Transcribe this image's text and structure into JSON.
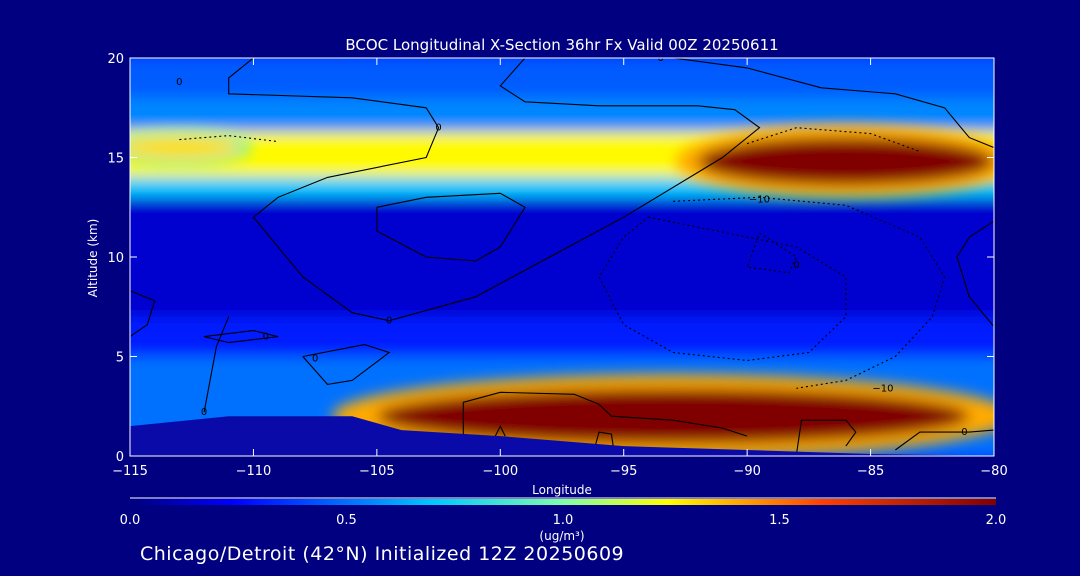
{
  "chart_data": {
    "type": "heatmap",
    "title": "BCOC Longitudinal X-Section 36hr  Fx Valid 00Z 20250611",
    "subtitle": "Chicago/Detroit (42°N) Initialized 12Z 20250609",
    "xlabel": "Longitude",
    "ylabel": "Altitude (km)",
    "xlim": [
      -115,
      -80
    ],
    "ylim": [
      0,
      20
    ],
    "x_ticks": [
      {
        "value": -115,
        "label": "−115"
      },
      {
        "value": -110,
        "label": "−110"
      },
      {
        "value": -105,
        "label": "−105"
      },
      {
        "value": -100,
        "label": "−100"
      },
      {
        "value": -95,
        "label": "−95"
      },
      {
        "value": -90,
        "label": "−90"
      },
      {
        "value": -85,
        "label": "−85"
      },
      {
        "value": -80,
        "label": "−80"
      }
    ],
    "y_ticks": [
      {
        "value": 0,
        "label": "0"
      },
      {
        "value": 5,
        "label": "5"
      },
      {
        "value": 10,
        "label": "10"
      },
      {
        "value": 15,
        "label": "15"
      },
      {
        "value": 20,
        "label": "20"
      }
    ],
    "colorbar": {
      "range": [
        0.0,
        2.0
      ],
      "ticks": [
        {
          "value": 0.0,
          "label": "0.0"
        },
        {
          "value": 0.5,
          "label": "0.5"
        },
        {
          "value": 1.0,
          "label": "1.0"
        },
        {
          "value": 1.5,
          "label": "1.5"
        },
        {
          "value": 2.0,
          "label": "2.0"
        }
      ],
      "units": "(ug/m³)"
    },
    "bands": [
      {
        "alt_bottom": 18,
        "alt_top": 20,
        "value": 0.45
      },
      {
        "alt_bottom": 16.3,
        "alt_top": 18,
        "value": 0.55
      },
      {
        "alt_bottom": 14,
        "alt_top": 16.3,
        "value": 1.25
      },
      {
        "alt_bottom": 13,
        "alt_top": 14,
        "value": 0.7
      },
      {
        "alt_bottom": 7,
        "alt_top": 13,
        "value": 0.15
      },
      {
        "alt_bottom": 5,
        "alt_top": 7,
        "value": 0.3
      },
      {
        "alt_bottom": 0,
        "alt_top": 5,
        "value": 0.5
      }
    ],
    "plumes": [
      {
        "lon_center": -86,
        "alt_center": 14.8,
        "lon_halfwidth": 6,
        "alt_halfwidth": 1.2,
        "value": 2.0
      },
      {
        "lon_center": -113,
        "alt_center": 15.5,
        "lon_halfwidth": 2.5,
        "alt_halfwidth": 0.6,
        "value": 1.3
      },
      {
        "lon_center": -93,
        "alt_center": 2.0,
        "lon_halfwidth": 12,
        "alt_halfwidth": 1.4,
        "value": 2.0
      }
    ],
    "contour_labels": [
      {
        "lon": -89.5,
        "alt": 12.9,
        "label": "−10"
      },
      {
        "lon": -84.5,
        "alt": 3.4,
        "label": "−10"
      },
      {
        "lon": -93.5,
        "alt": 20,
        "label": "0"
      },
      {
        "lon": -113,
        "alt": 18.8,
        "label": "0"
      },
      {
        "lon": -102.5,
        "alt": 16.5,
        "label": "0"
      },
      {
        "lon": -109.5,
        "alt": 6.0,
        "label": "0"
      },
      {
        "lon": -107.5,
        "alt": 4.9,
        "label": "0"
      },
      {
        "lon": -112,
        "alt": 2.2,
        "label": "0"
      },
      {
        "lon": -104.5,
        "alt": 6.8,
        "label": "0"
      },
      {
        "lon": -88,
        "alt": 9.6,
        "label": "0"
      },
      {
        "lon": -81.2,
        "alt": 1.2,
        "label": "0"
      }
    ],
    "terrain": [
      {
        "lon": -115,
        "alt": 1.5
      },
      {
        "lon": -111,
        "alt": 2.0
      },
      {
        "lon": -106,
        "alt": 2.0
      },
      {
        "lon": -104,
        "alt": 1.3
      },
      {
        "lon": -100,
        "alt": 1.0
      },
      {
        "lon": -95,
        "alt": 0.5
      },
      {
        "lon": -90,
        "alt": 0.3
      },
      {
        "lon": -85,
        "alt": 0.1
      },
      {
        "lon": -80,
        "alt": 0.0
      }
    ]
  }
}
